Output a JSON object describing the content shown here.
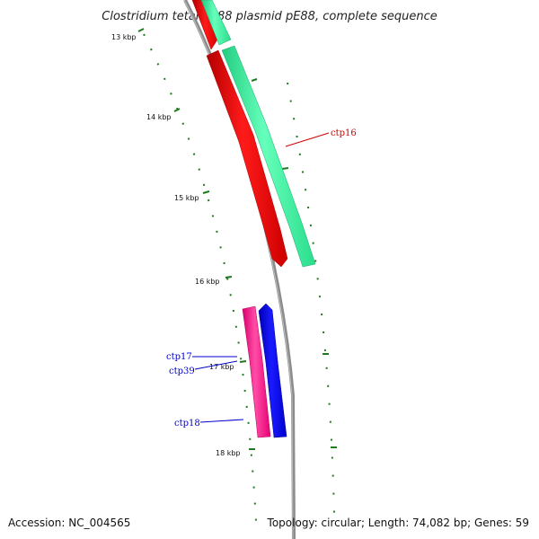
{
  "title": "Clostridium tetani E88 plasmid pE88, complete sequence",
  "footer": {
    "accession": "Accession: NC_004565",
    "summary": "Topology: circular; Length: 74,082 bp; Genes: 59"
  },
  "tick_labels": [
    "13 kbp",
    "14 kbp",
    "15 kbp",
    "16 kbp",
    "17 kbp",
    "18 kbp"
  ],
  "genes": [
    {
      "id": "ctp16",
      "label": "ctp16",
      "label_color": "#cc0000",
      "strand": "forward"
    },
    {
      "id": "ctp17",
      "label": "ctp17",
      "label_color": "#0000cc",
      "strand": "reverse"
    },
    {
      "id": "ctp39",
      "label": "ctp39",
      "label_color": "#0000cc",
      "strand": "reverse"
    },
    {
      "id": "ctp18",
      "label": "ctp18",
      "label_color": "#0000cc",
      "strand": "forward"
    }
  ],
  "colors": {
    "backbone": "#8c8c8c",
    "tick": "#1f7a1f",
    "gene_red": "#ff0000",
    "gene_green": "#33ee99",
    "gene_magenta": "#ff1a8c",
    "gene_blue": "#0000ff"
  }
}
